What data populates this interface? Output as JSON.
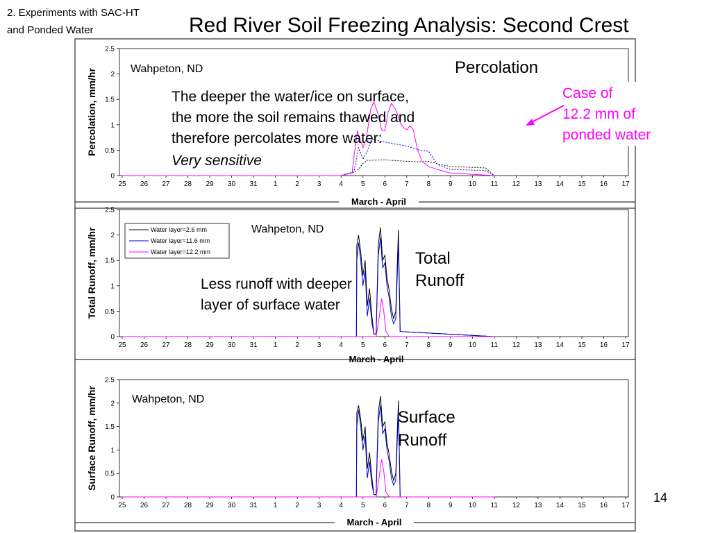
{
  "slide": {
    "header_lines": [
      "2. Experiments with SAC-HT",
      "and Ponded Water"
    ],
    "title": "Red River Soil Freezing Analysis: Second Crest",
    "page_number": "14"
  },
  "colors": {
    "black": "#000000",
    "blue": "#0000cc",
    "magenta": "#ff00ff"
  },
  "x_axis": {
    "label": "March - April",
    "ticks": [
      "25",
      "26",
      "27",
      "28",
      "29",
      "30",
      "31",
      "1",
      "2",
      "3",
      "4",
      "5",
      "6",
      "7",
      "8",
      "9",
      "10",
      "11",
      "12",
      "13",
      "14",
      "15",
      "16",
      "17"
    ]
  },
  "panels": {
    "percolation": {
      "location": "Wahpeton, ND",
      "title": "Percolation",
      "note_lines": [
        "The deeper the water/ice on surface,",
        "the more the soil remains thawed and",
        "therefore percolates more water:",
        "Very sensitive"
      ],
      "callout_lines": [
        "Case of",
        "12.2 mm of",
        "ponded water"
      ]
    },
    "total_runoff": {
      "location": "Wahpeton, ND",
      "title_lines": [
        "Total",
        "Runoff"
      ],
      "note_lines": [
        "Less runoff with deeper",
        "layer of surface water"
      ],
      "legend": [
        "Water layer=2.6 mm",
        "Water layer=11.6 mm",
        "Water layer=12.2 mm"
      ]
    },
    "surface_runoff": {
      "location": "Wahpeton, ND",
      "title_lines": [
        "Surface",
        "Runoff"
      ]
    }
  },
  "chart_data": [
    {
      "type": "line",
      "ylabel": "Percolation, mm/hr",
      "xlabel": "March - April",
      "ylim": [
        0,
        2.5
      ],
      "yticks": [
        "0",
        "0.5",
        "1",
        "1.5",
        "2",
        "2.5"
      ],
      "series": [
        {
          "name": "Water layer=2.6 mm",
          "color": "#000000",
          "dash": "2,2",
          "points": [
            [
              25,
              0
            ],
            [
              35,
              0
            ],
            [
              35.2,
              0.03
            ],
            [
              35.5,
              0.05
            ],
            [
              35.8,
              0.12
            ],
            [
              36.0,
              0.24
            ],
            [
              36.2,
              0.3
            ],
            [
              37,
              0.31
            ],
            [
              38,
              0.28
            ],
            [
              38.6,
              0.27
            ],
            [
              39,
              0.28
            ],
            [
              39.5,
              0.22
            ],
            [
              40,
              0.18
            ],
            [
              41.6,
              0.15
            ],
            [
              42,
              0
            ]
          ]
        },
        {
          "name": "Water layer=11.6 mm",
          "color": "#0000cc",
          "dash": "2,2",
          "points": [
            [
              25,
              0
            ],
            [
              35,
              0
            ],
            [
              35.4,
              0.05
            ],
            [
              35.6,
              0.1
            ],
            [
              35.7,
              0.32
            ],
            [
              35.8,
              0.55
            ],
            [
              35.9,
              0.44
            ],
            [
              36.0,
              0.32
            ],
            [
              36.2,
              0.48
            ],
            [
              36.4,
              0.72
            ],
            [
              37,
              0.66
            ],
            [
              38,
              0.58
            ],
            [
              38.6,
              0.5
            ],
            [
              39,
              0.48
            ],
            [
              39.4,
              0.22
            ],
            [
              40,
              0.12
            ],
            [
              41.6,
              0.1
            ],
            [
              42,
              0
            ]
          ]
        },
        {
          "name": "Water layer=12.2 mm",
          "color": "#ff00ff",
          "dash": "",
          "points": [
            [
              25,
              0
            ],
            [
              35,
              0
            ],
            [
              35.5,
              0.05
            ],
            [
              35.6,
              0.4
            ],
            [
              35.75,
              0.88
            ],
            [
              35.85,
              0.7
            ],
            [
              35.95,
              0.62
            ],
            [
              36.0,
              0.55
            ],
            [
              36.15,
              0.72
            ],
            [
              36.35,
              1.3
            ],
            [
              36.5,
              1.45
            ],
            [
              36.7,
              1.2
            ],
            [
              36.85,
              0.9
            ],
            [
              37.0,
              0.88
            ],
            [
              37.15,
              1.25
            ],
            [
              37.3,
              1.42
            ],
            [
              37.5,
              1.3
            ],
            [
              37.7,
              1.05
            ],
            [
              37.85,
              0.95
            ],
            [
              38.0,
              0.9
            ],
            [
              38.15,
              0.98
            ],
            [
              38.3,
              0.9
            ],
            [
              38.5,
              0.5
            ],
            [
              38.7,
              0.28
            ],
            [
              39.0,
              0.18
            ],
            [
              39.4,
              0.12
            ],
            [
              40,
              0.05
            ],
            [
              42,
              0
            ]
          ]
        }
      ]
    },
    {
      "type": "line",
      "ylabel": "Total Runoff, mm/hr",
      "xlabel": "March - April",
      "ylim": [
        0,
        2.5
      ],
      "yticks": [
        "0",
        "0.5",
        "1",
        "1.5",
        "2",
        "2.5"
      ],
      "series": [
        {
          "name": "Water layer=2.6 mm",
          "color": "#000000",
          "dash": "",
          "points": [
            [
              25,
              0
            ],
            [
              35.7,
              0
            ],
            [
              35.72,
              1.8
            ],
            [
              35.8,
              2.0
            ],
            [
              35.9,
              1.65
            ],
            [
              36.0,
              1.2
            ],
            [
              36.1,
              1.5
            ],
            [
              36.2,
              0.6
            ],
            [
              36.3,
              0.95
            ],
            [
              36.4,
              0.45
            ],
            [
              36.5,
              0.05
            ],
            [
              36.6,
              0.05
            ],
            [
              36.7,
              1.8
            ],
            [
              36.8,
              2.15
            ],
            [
              36.9,
              1.5
            ],
            [
              37.0,
              1.6
            ],
            [
              37.1,
              1.15
            ],
            [
              37.2,
              0.9
            ],
            [
              37.3,
              0.55
            ],
            [
              37.4,
              0.35
            ],
            [
              37.5,
              0.5
            ],
            [
              37.62,
              2.1
            ],
            [
              37.7,
              0.1
            ],
            [
              42,
              0
            ]
          ]
        },
        {
          "name": "Water layer=11.6 mm",
          "color": "#0000cc",
          "dash": "",
          "points": [
            [
              25,
              0
            ],
            [
              35.7,
              0
            ],
            [
              35.72,
              1.5
            ],
            [
              35.8,
              1.85
            ],
            [
              35.9,
              1.5
            ],
            [
              36.0,
              1.0
            ],
            [
              36.1,
              1.3
            ],
            [
              36.2,
              0.4
            ],
            [
              36.3,
              0.75
            ],
            [
              36.4,
              0.3
            ],
            [
              36.5,
              0.05
            ],
            [
              36.6,
              0.05
            ],
            [
              36.7,
              1.6
            ],
            [
              36.8,
              1.95
            ],
            [
              36.9,
              1.35
            ],
            [
              37.0,
              1.45
            ],
            [
              37.1,
              1.0
            ],
            [
              37.2,
              0.75
            ],
            [
              37.3,
              0.4
            ],
            [
              37.4,
              0.25
            ],
            [
              37.5,
              0.35
            ],
            [
              37.62,
              1.85
            ],
            [
              37.7,
              0.1
            ],
            [
              42,
              0
            ]
          ]
        },
        {
          "name": "Water layer=12.2 mm",
          "color": "#ff00ff",
          "dash": "",
          "points": [
            [
              25,
              0
            ],
            [
              36.6,
              0
            ],
            [
              36.75,
              0.4
            ],
            [
              36.85,
              0.75
            ],
            [
              36.95,
              0.5
            ],
            [
              37.05,
              0.1
            ],
            [
              37.2,
              0
            ],
            [
              42,
              0
            ]
          ]
        }
      ]
    },
    {
      "type": "line",
      "ylabel": "Surface Runoff, mm/hr",
      "xlabel": "March - April",
      "ylim": [
        0,
        2.5
      ],
      "yticks": [
        "0",
        "0.5",
        "1",
        "1.5",
        "2",
        "2.5"
      ],
      "series": [
        {
          "name": "Water layer=2.6 mm",
          "color": "#000000",
          "dash": "",
          "points": [
            [
              25,
              0
            ],
            [
              35.7,
              0
            ],
            [
              35.72,
              1.8
            ],
            [
              35.8,
              1.95
            ],
            [
              35.9,
              1.65
            ],
            [
              36.0,
              1.2
            ],
            [
              36.1,
              1.5
            ],
            [
              36.2,
              0.6
            ],
            [
              36.3,
              0.95
            ],
            [
              36.4,
              0.45
            ],
            [
              36.5,
              0.05
            ],
            [
              36.6,
              0.05
            ],
            [
              36.7,
              1.8
            ],
            [
              36.8,
              2.15
            ],
            [
              36.9,
              1.5
            ],
            [
              37.0,
              1.6
            ],
            [
              37.1,
              1.15
            ],
            [
              37.2,
              0.9
            ],
            [
              37.3,
              0.55
            ],
            [
              37.4,
              0.35
            ],
            [
              37.5,
              0.5
            ],
            [
              37.62,
              2.05
            ],
            [
              37.7,
              0
            ],
            [
              42,
              0
            ]
          ]
        },
        {
          "name": "Water layer=11.6 mm",
          "color": "#0000cc",
          "dash": "",
          "points": [
            [
              25,
              0
            ],
            [
              35.7,
              0
            ],
            [
              35.72,
              1.5
            ],
            [
              35.8,
              1.85
            ],
            [
              35.9,
              1.5
            ],
            [
              36.0,
              1.0
            ],
            [
              36.1,
              1.3
            ],
            [
              36.2,
              0.4
            ],
            [
              36.3,
              0.75
            ],
            [
              36.4,
              0.3
            ],
            [
              36.5,
              0.05
            ],
            [
              36.6,
              0.05
            ],
            [
              36.7,
              1.6
            ],
            [
              36.8,
              1.95
            ],
            [
              36.9,
              1.35
            ],
            [
              37.0,
              1.45
            ],
            [
              37.1,
              1.0
            ],
            [
              37.2,
              0.75
            ],
            [
              37.3,
              0.4
            ],
            [
              37.4,
              0.25
            ],
            [
              37.5,
              0.35
            ],
            [
              37.62,
              1.85
            ],
            [
              37.7,
              0
            ],
            [
              42,
              0
            ]
          ]
        },
        {
          "name": "Water layer=12.2 mm",
          "color": "#ff00ff",
          "dash": "",
          "points": [
            [
              25,
              0
            ],
            [
              36.6,
              0
            ],
            [
              36.75,
              0.45
            ],
            [
              36.85,
              0.8
            ],
            [
              36.95,
              0.55
            ],
            [
              37.05,
              0.1
            ],
            [
              37.2,
              0
            ],
            [
              42,
              0
            ]
          ]
        }
      ]
    }
  ]
}
